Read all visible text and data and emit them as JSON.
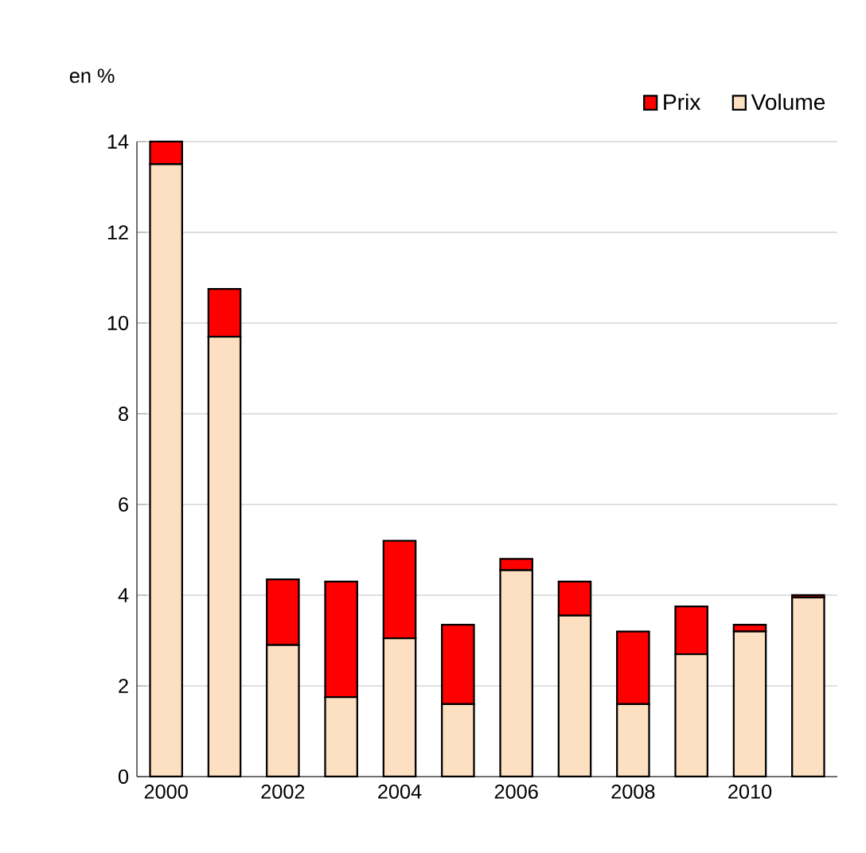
{
  "chart_data": {
    "type": "bar",
    "stacked": true,
    "ylabel": "en %",
    "categories": [
      "2000",
      null,
      "2002",
      null,
      "2004",
      null,
      "2006",
      null,
      "2008",
      null,
      "2010",
      null
    ],
    "series": [
      {
        "name": "Volume",
        "color": "#fde0c2",
        "values": [
          13.5,
          9.7,
          2.9,
          1.75,
          3.05,
          1.6,
          4.55,
          3.55,
          1.6,
          2.7,
          3.2,
          3.95
        ]
      },
      {
        "name": "Prix",
        "color": "#ff0000",
        "values": [
          0.5,
          1.05,
          1.45,
          2.55,
          2.15,
          1.75,
          0.25,
          0.75,
          1.6,
          1.05,
          0.15,
          0.05
        ]
      }
    ],
    "ylim": [
      0,
      14
    ],
    "yticks": [
      0,
      2,
      4,
      6,
      8,
      10,
      12,
      14
    ],
    "grid": "y",
    "legend": "top right"
  }
}
